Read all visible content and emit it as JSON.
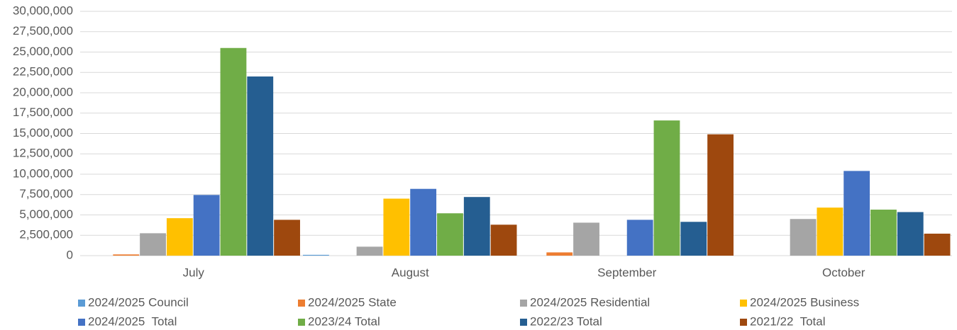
{
  "chart_data": {
    "type": "bar",
    "categories": [
      "July",
      "August",
      "September",
      "October"
    ],
    "series": [
      {
        "name": "2024/2025 Council",
        "color": "#5b9bd5",
        "values": [
          0,
          100000,
          0,
          0
        ]
      },
      {
        "name": "2024/2025 State",
        "color": "#ed7d31",
        "values": [
          150000,
          0,
          400000,
          0
        ]
      },
      {
        "name": "2024/2025 Residential",
        "color": "#a5a5a5",
        "values": [
          2750000,
          1100000,
          4050000,
          4500000
        ]
      },
      {
        "name": "2024/2025 Business",
        "color": "#ffc000",
        "values": [
          4600000,
          7000000,
          0,
          5900000
        ]
      },
      {
        "name": "2024/2025  Total",
        "color": "#4472c4",
        "values": [
          7450000,
          8200000,
          4400000,
          10400000
        ]
      },
      {
        "name": "2023/24 Total",
        "color": "#70ad47",
        "values": [
          25500000,
          5200000,
          16600000,
          5650000
        ]
      },
      {
        "name": "2022/23 Total",
        "color": "#255e91",
        "values": [
          22000000,
          7200000,
          4150000,
          5350000
        ]
      },
      {
        "name": "2021/22  Total",
        "color": "#9e480e",
        "values": [
          4400000,
          3800000,
          14900000,
          2700000
        ]
      }
    ],
    "ylim": [
      0,
      30000000
    ],
    "yticks": [
      0,
      {
        "value": 2500000,
        "label": "2,500,000"
      },
      {
        "value": 5000000,
        "label": "5,000,000"
      },
      {
        "value": 7500000,
        "label": "7,500,000"
      },
      {
        "value": 10000000,
        "label": "10,000,000"
      },
      {
        "value": 12500000,
        "label": "12,500,000"
      },
      {
        "value": 15000000,
        "label": "15,000,000"
      },
      {
        "value": 17500000,
        "label": "17,500,000"
      },
      {
        "value": 20000000,
        "label": "20,000,000"
      },
      {
        "value": 22500000,
        "label": "22,500,000"
      },
      {
        "value": 25000000,
        "label": "25,000,000"
      },
      {
        "value": 27500000,
        "label": "27,500,000"
      },
      {
        "value": 30000000,
        "label": "30,000,000"
      }
    ],
    "grid": true,
    "legend": "bottom"
  }
}
